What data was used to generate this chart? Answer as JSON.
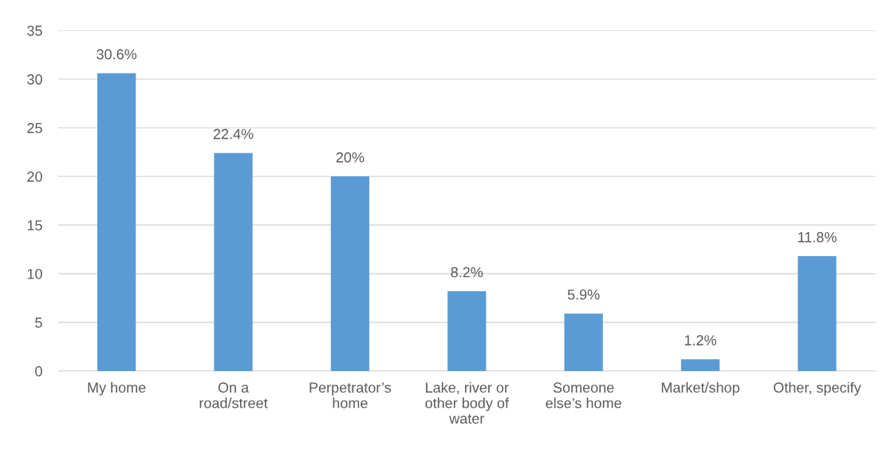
{
  "chart_data": {
    "type": "bar",
    "categories": [
      "My home",
      "On a\nroad/street",
      "Perpetrator’s\nhome",
      "Lake, river or\nother body of\nwater",
      "Someone\nelse’s home",
      "Market/shop",
      "Other, specify"
    ],
    "values": [
      30.6,
      22.4,
      20,
      8.2,
      5.9,
      1.2,
      11.8
    ],
    "value_labels": [
      "30.6%",
      "22.4%",
      "20%",
      "8.2%",
      "5.9%",
      "1.2%",
      "11.8%"
    ],
    "color": "#5b9bd5",
    "ylim": [
      0,
      35
    ],
    "yticks": [
      0,
      5,
      10,
      15,
      20,
      25,
      30,
      35
    ],
    "grid": "y",
    "legend": false
  }
}
